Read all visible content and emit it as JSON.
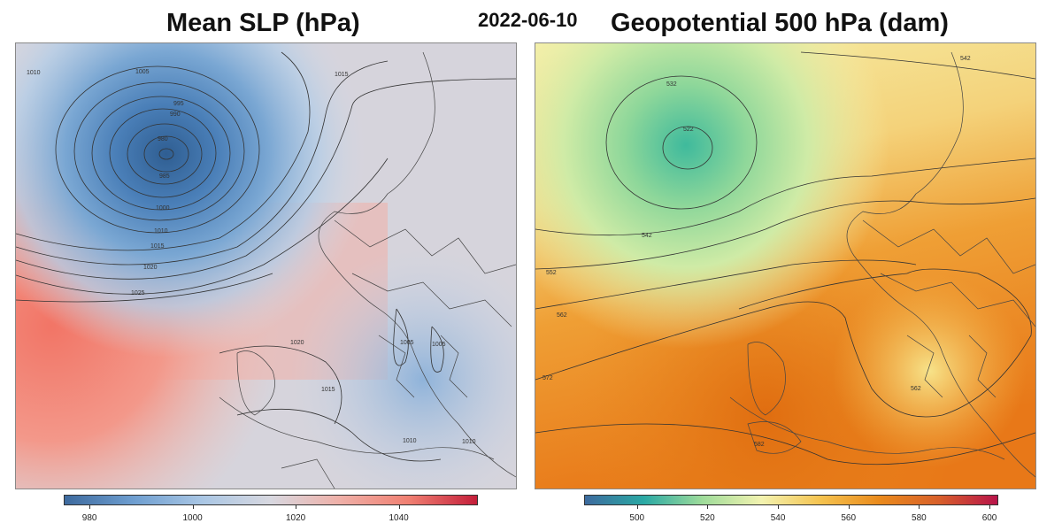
{
  "date": "2022-06-10",
  "left_panel": {
    "title": "Mean SLP (hPa)",
    "colorbar": {
      "min": 975,
      "max": 1055,
      "ticks": [
        "980",
        "1000",
        "1020",
        "1040"
      ],
      "tick_values": [
        980,
        1000,
        1020,
        1040
      ],
      "colors": [
        "#3d6a9e",
        "#6e9ed0",
        "#a9c6e4",
        "#d8d8e0",
        "#efb0a8",
        "#f08072",
        "#c41e3a"
      ]
    },
    "contour_labels": [
      "1010",
      "1005",
      "995",
      "990",
      "980",
      "985",
      "1000",
      "1010",
      "1015",
      "1020",
      "1025",
      "1015",
      "1020",
      "1005",
      "1005",
      "1015",
      "1010",
      "1010"
    ]
  },
  "right_panel": {
    "title": "Geopotential 500 hPa (dam)",
    "colorbar": {
      "min": 485,
      "max": 602,
      "ticks": [
        "500",
        "520",
        "540",
        "560",
        "580",
        "600"
      ],
      "tick_values": [
        500,
        520,
        540,
        560,
        580,
        600
      ],
      "colors": [
        "#3d6a9e",
        "#2aa9a4",
        "#9fdc9a",
        "#f3f3b0",
        "#f5c34f",
        "#ea8a1c",
        "#d8602a",
        "#b8144a"
      ]
    },
    "contour_labels": [
      "532",
      "522",
      "542",
      "552",
      "562",
      "572",
      "562",
      "582",
      "542"
    ]
  }
}
